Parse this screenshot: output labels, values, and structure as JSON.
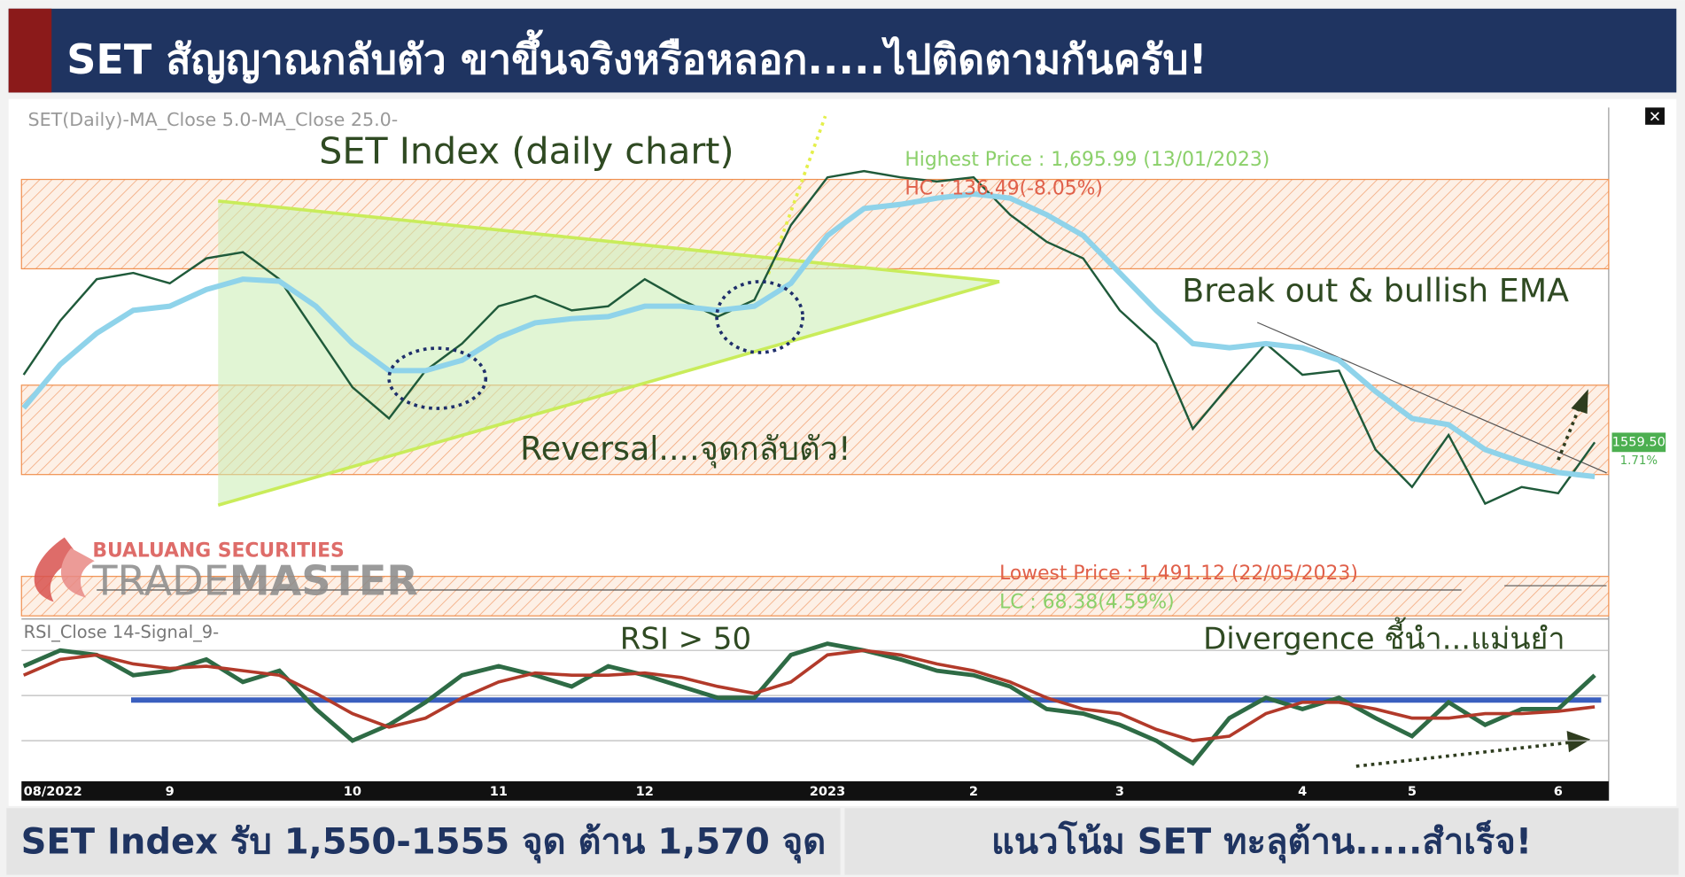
{
  "header": {
    "title": "SET สัญญาณกลับตัว ขาขึ้นจริงหรือหลอก.....ไปติดตามกันครับ!"
  },
  "brand": {
    "company": "BUALUANG SECURITIES",
    "product_light": "TRADE",
    "product_bold": "MASTER"
  },
  "chart_data": {
    "type": "line",
    "title": "SET Index (daily chart)",
    "legend_text": "SET(Daily)-MA_Close 5.0-MA_Close 25.0-",
    "categories": [
      "08/2022",
      null,
      null,
      null,
      "9",
      null,
      null,
      null,
      null,
      "10",
      null,
      null,
      null,
      "11",
      null,
      null,
      null,
      "12",
      null,
      null,
      null,
      null,
      "2023",
      null,
      null,
      null,
      "2",
      null,
      null,
      null,
      "3",
      null,
      null,
      null,
      null,
      "4",
      null,
      null,
      "5",
      null,
      null,
      null,
      "6",
      null
    ],
    "ylim": [
      1475,
      1718
    ],
    "zones": [
      [
        1643,
        1686
      ],
      [
        1544,
        1587
      ],
      [
        1476,
        1495
      ]
    ],
    "series": [
      {
        "color": "#1f5a3a",
        "values": [
          1592,
          1618,
          1638,
          1641,
          1636,
          1648,
          1651,
          1638,
          1612,
          1586,
          1571,
          1594,
          1607,
          1625,
          1630,
          1623,
          1625,
          1638,
          1628,
          1620,
          1628,
          1664,
          1687,
          1690,
          1687,
          1685,
          1687,
          1669,
          1656,
          1648,
          1623,
          1607,
          1566,
          1587,
          1607,
          1592,
          1594,
          1556,
          1538,
          1563,
          1530,
          1538,
          1535,
          1559.5
        ]
      },
      {
        "color": "#8fd3ea",
        "values": [
          1576,
          1597,
          1612,
          1623,
          1625,
          1633,
          1638,
          1637,
          1625,
          1607,
          1594,
          1594,
          1599,
          1610,
          1617,
          1619,
          1620,
          1625,
          1625,
          1623,
          1625,
          1636,
          1659,
          1672,
          1674,
          1677,
          1679,
          1677,
          1669,
          1659,
          1641,
          1623,
          1607,
          1605,
          1607,
          1605,
          1599,
          1584,
          1571,
          1568,
          1556,
          1550,
          1545,
          1543
        ]
      }
    ],
    "last_price": {
      "value": 1559.5,
      "label": "1559.50"
    },
    "last_change": "1.71%",
    "highest": {
      "text": "Highest Price : 1,695.99 (13/01/2023)",
      "change": "HC : 136.49(-8.05%)"
    },
    "lowest": {
      "text": "Lowest Price : 1,491.12 (22/05/2023)",
      "change": "LC : 68.38(4.59%)"
    },
    "annotations": [
      "Break out & bullish EMA",
      "Reversal....จุดกลับตัว!",
      "RSI > 50",
      "Divergence ชี้นำ...แม่นยำ"
    ],
    "rsi": {
      "legend_text": "RSI_Close 14-Signal_9-",
      "ylim": [
        12,
        82
      ],
      "grid": [
        30,
        50,
        70
      ],
      "trendline": 48,
      "series": [
        {
          "color": "#2e6b45",
          "values": [
            63,
            70,
            68,
            59,
            61,
            66,
            56,
            61,
            44,
            30,
            37,
            47,
            59,
            63,
            59,
            54,
            63,
            59,
            54,
            49,
            49,
            68,
            73,
            70,
            66,
            61,
            59,
            54,
            44,
            42,
            37,
            30,
            20,
            40,
            49,
            44,
            49,
            40,
            32,
            47,
            37,
            44,
            44,
            59
          ]
        },
        {
          "color": "#b23a2a",
          "values": [
            59,
            66,
            68,
            64,
            62,
            63,
            61,
            59,
            51,
            42,
            36,
            40,
            49,
            56,
            60,
            59,
            59,
            60,
            58,
            54,
            51,
            56,
            68,
            70,
            68,
            64,
            61,
            56,
            49,
            44,
            42,
            35,
            30,
            32,
            42,
            47,
            47,
            44,
            40,
            40,
            42,
            42,
            43,
            45
          ]
        }
      ]
    }
  },
  "footer": {
    "left": "SET Index รับ 1,550-1555 จุด ต้าน 1,570 จุด",
    "right": "แนวโน้ม SET ทะลุต้าน.....สำเร็จ!"
  }
}
